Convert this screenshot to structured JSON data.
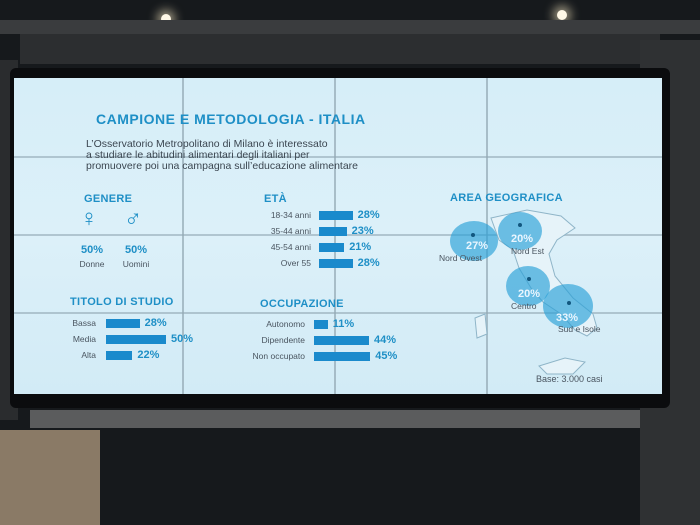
{
  "slide": {
    "title": "CAMPIONE E METODOLOGIA - ITALIA",
    "intro": "L’Osservatorio Metropolitano di Milano è interessato\na studiare le abitudini alimentari degli italiani per\npromuovere poi una campagna sull’educazione alimentare",
    "genere": {
      "heading": "GENERE",
      "items": [
        {
          "symbol": "♀",
          "value": "50%",
          "label": "Donne"
        },
        {
          "symbol": "♂",
          "value": "50%",
          "label": "Uomini"
        }
      ]
    },
    "eta": {
      "heading": "ETÀ",
      "rows": [
        {
          "label": "18-34 anni",
          "value": "28%",
          "pct": 28
        },
        {
          "label": "35-44 anni",
          "value": "23%",
          "pct": 23
        },
        {
          "label": "45-54 anni",
          "value": "21%",
          "pct": 21
        },
        {
          "label": "Over 55",
          "value": "28%",
          "pct": 28
        }
      ]
    },
    "area": {
      "heading": "AREA GEOGRAFICA",
      "regions": [
        {
          "value": "27%",
          "label": "Nord Ovest"
        },
        {
          "value": "20%",
          "label": "Nord Est"
        },
        {
          "value": "20%",
          "label": "Centro"
        },
        {
          "value": "33%",
          "label": "Sud e Isole"
        }
      ],
      "base": "Base: 3.000 casi"
    },
    "titolo": {
      "heading": "TITOLO DI STUDIO",
      "rows": [
        {
          "label": "Bassa",
          "value": "28%",
          "pct": 28
        },
        {
          "label": "Media",
          "value": "50%",
          "pct": 50
        },
        {
          "label": "Alta",
          "value": "22%",
          "pct": 22
        }
      ]
    },
    "occupazione": {
      "heading": "OCCUPAZIONE",
      "rows": [
        {
          "label": "Autonomo",
          "value": "11%",
          "pct": 11
        },
        {
          "label": "Dipendente",
          "value": "44%",
          "pct": 44
        },
        {
          "label": "Non occupato",
          "value": "45%",
          "pct": 45
        }
      ]
    }
  },
  "colors": {
    "accent": "#1e8fc6",
    "bar": "#1a8acc",
    "screen": "#d6eef8"
  }
}
